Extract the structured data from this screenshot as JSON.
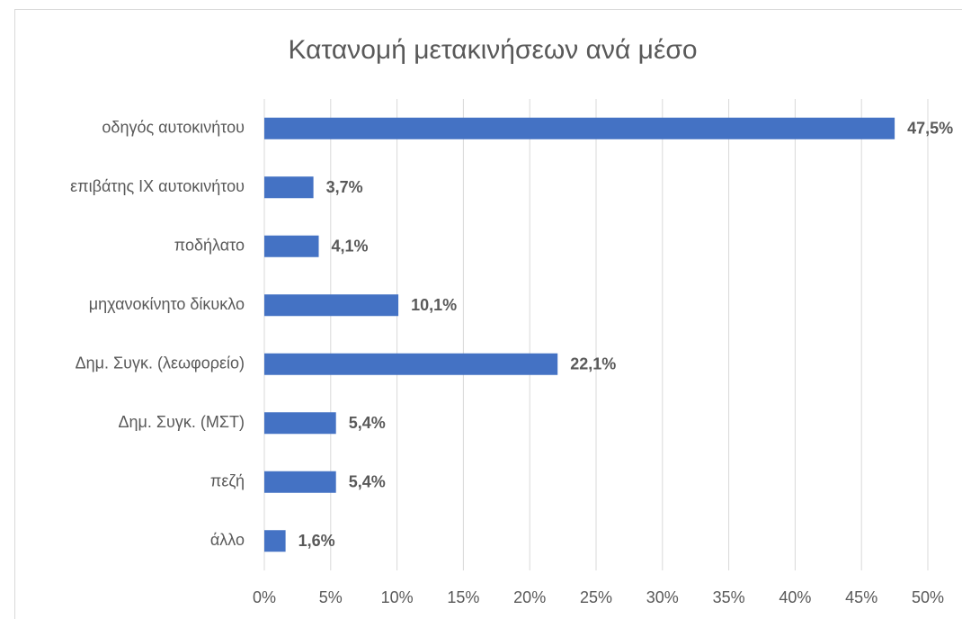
{
  "chart_data": {
    "type": "bar",
    "orientation": "horizontal",
    "title": "Κατανομή μετακινήσεων ανά μέσο",
    "categories": [
      "οδηγός αυτοκινήτου",
      "επιβάτης ΙΧ αυτοκινήτου",
      "ποδήλατο",
      "μηχανοκίνητο δίκυκλο",
      "Δημ. Συγκ. (λεωφορείο)",
      "Δημ. Συγκ. (ΜΣΤ)",
      "πεζή",
      "άλλο"
    ],
    "values": [
      47.5,
      3.7,
      4.1,
      10.1,
      22.1,
      5.4,
      5.4,
      1.6
    ],
    "value_labels": [
      "47,5%",
      "3,7%",
      "4,1%",
      "10,1%",
      "22,1%",
      "5,4%",
      "5,4%",
      "1,6%"
    ],
    "color": "#4472c4",
    "xlim": [
      0,
      50
    ],
    "xticks": [
      {
        "value": 0,
        "label": "0%"
      },
      {
        "value": 5,
        "label": "5%"
      },
      {
        "value": 10,
        "label": "10%"
      },
      {
        "value": 15,
        "label": "15%"
      },
      {
        "value": 20,
        "label": "20%"
      },
      {
        "value": 25,
        "label": "25%"
      },
      {
        "value": 30,
        "label": "30%"
      },
      {
        "value": 35,
        "label": "35%"
      },
      {
        "value": 40,
        "label": "40%"
      },
      {
        "value": 45,
        "label": "45%"
      },
      {
        "value": 50,
        "label": "50%"
      }
    ],
    "grid": true
  }
}
